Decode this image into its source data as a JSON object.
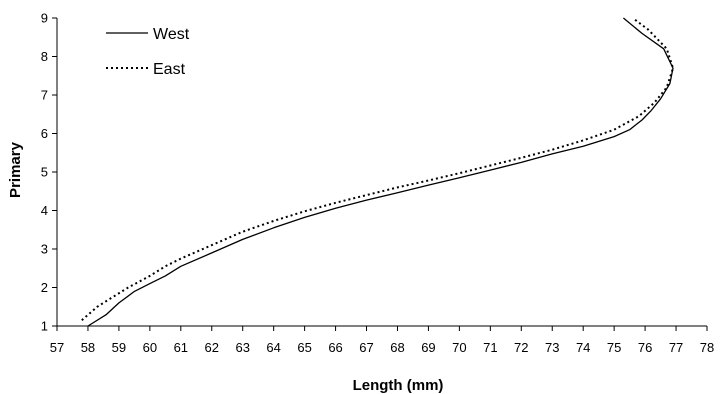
{
  "chart_data": {
    "type": "line",
    "xlabel": "Length (mm)",
    "ylabel": "Primary",
    "xlim": [
      57,
      78
    ],
    "ylim": [
      1,
      9
    ],
    "xticks": [
      57,
      58,
      59,
      60,
      61,
      62,
      63,
      64,
      65,
      66,
      67,
      68,
      69,
      70,
      71,
      72,
      73,
      74,
      75,
      76,
      77,
      78
    ],
    "yticks": [
      1,
      2,
      3,
      4,
      5,
      6,
      7,
      8,
      9
    ],
    "grid": false,
    "legend_position": "top-left",
    "series": [
      {
        "name": "West",
        "style": "solid",
        "points": [
          [
            58.0,
            1.0
          ],
          [
            58.6,
            1.3
          ],
          [
            59.0,
            1.6
          ],
          [
            59.5,
            1.9
          ],
          [
            60.0,
            2.1
          ],
          [
            60.5,
            2.3
          ],
          [
            61.0,
            2.55
          ],
          [
            62.0,
            2.9
          ],
          [
            63.0,
            3.25
          ],
          [
            64.0,
            3.55
          ],
          [
            65.0,
            3.82
          ],
          [
            66.0,
            4.06
          ],
          [
            67.0,
            4.27
          ],
          [
            68.0,
            4.46
          ],
          [
            69.0,
            4.66
          ],
          [
            70.0,
            4.85
          ],
          [
            71.0,
            5.05
          ],
          [
            72.0,
            5.25
          ],
          [
            73.0,
            5.47
          ],
          [
            74.0,
            5.67
          ],
          [
            75.0,
            5.92
          ],
          [
            75.5,
            6.1
          ],
          [
            75.9,
            6.35
          ],
          [
            76.2,
            6.6
          ],
          [
            76.5,
            6.9
          ],
          [
            76.8,
            7.3
          ],
          [
            76.9,
            7.7
          ],
          [
            76.6,
            8.2
          ],
          [
            75.9,
            8.6
          ],
          [
            75.3,
            9.0
          ]
        ]
      },
      {
        "name": "East",
        "style": "dotted",
        "points": [
          [
            57.8,
            1.15
          ],
          [
            58.3,
            1.5
          ],
          [
            58.8,
            1.75
          ],
          [
            59.3,
            2.0
          ],
          [
            60.0,
            2.3
          ],
          [
            60.5,
            2.55
          ],
          [
            61.0,
            2.75
          ],
          [
            62.0,
            3.1
          ],
          [
            63.0,
            3.45
          ],
          [
            64.0,
            3.73
          ],
          [
            65.0,
            3.98
          ],
          [
            66.0,
            4.2
          ],
          [
            67.0,
            4.4
          ],
          [
            68.0,
            4.6
          ],
          [
            69.0,
            4.78
          ],
          [
            70.0,
            4.97
          ],
          [
            71.0,
            5.17
          ],
          [
            72.0,
            5.37
          ],
          [
            73.0,
            5.58
          ],
          [
            74.0,
            5.82
          ],
          [
            75.0,
            6.1
          ],
          [
            75.8,
            6.45
          ],
          [
            76.3,
            6.8
          ],
          [
            76.7,
            7.2
          ],
          [
            76.9,
            7.7
          ],
          [
            76.7,
            8.2
          ],
          [
            76.1,
            8.7
          ],
          [
            75.6,
            9.0
          ]
        ]
      }
    ]
  }
}
